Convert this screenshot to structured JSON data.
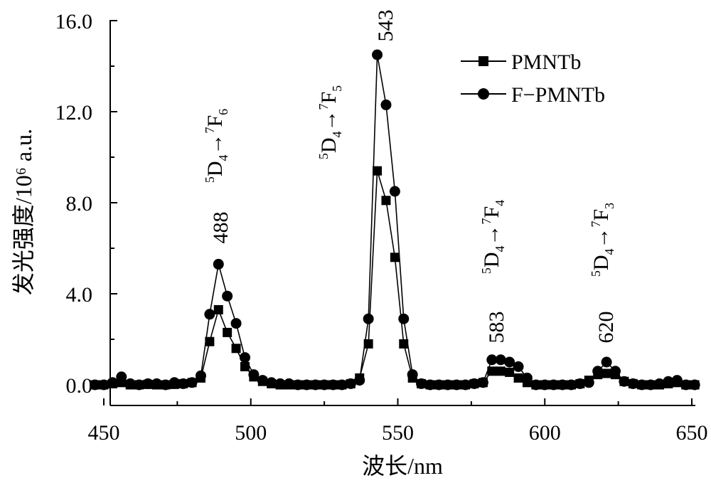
{
  "chart_data": {
    "type": "line",
    "xlabel": "波长/nm",
    "ylabel": "发光强度/10⁶ a.u.",
    "xlim": [
      450,
      650
    ],
    "ylim": [
      0,
      16
    ],
    "x_ticks": [
      450,
      500,
      550,
      600,
      650
    ],
    "x_tick_labels": [
      "450",
      "500",
      "550",
      "600",
      "650"
    ],
    "y_ticks": [
      0,
      4,
      8,
      12,
      16
    ],
    "y_tick_labels": [
      "0.0",
      "4.0",
      "8.0",
      "12.0",
      "16.0"
    ],
    "grid": false,
    "legend_position": "top-right",
    "series": [
      {
        "name": "PMNTb",
        "marker": "square",
        "x": [
          447,
          450,
          453,
          456,
          459,
          462,
          465,
          468,
          471,
          474,
          477,
          480,
          483,
          486,
          489,
          492,
          495,
          498,
          501,
          504,
          507,
          510,
          513,
          516,
          519,
          522,
          525,
          528,
          531,
          534,
          537,
          540,
          543,
          546,
          549,
          552,
          555,
          558,
          561,
          564,
          567,
          570,
          573,
          576,
          579,
          582,
          585,
          588,
          591,
          594,
          597,
          600,
          603,
          606,
          609,
          612,
          615,
          618,
          621,
          624,
          627,
          630,
          633,
          636,
          639,
          642,
          645,
          648,
          651
        ],
        "values": [
          0.0,
          0.0,
          0.05,
          0.1,
          0.0,
          0.0,
          0.02,
          0.0,
          0.0,
          0.02,
          0.05,
          0.1,
          0.3,
          1.9,
          3.3,
          2.3,
          1.6,
          0.8,
          0.35,
          0.15,
          0.05,
          0.0,
          0.0,
          0.0,
          0.0,
          0.0,
          0.0,
          0.0,
          0.0,
          0.05,
          0.3,
          1.8,
          9.4,
          8.1,
          5.6,
          1.8,
          0.3,
          0.05,
          0.0,
          0.0,
          0.0,
          0.0,
          0.0,
          0.05,
          0.1,
          0.6,
          0.6,
          0.55,
          0.3,
          0.1,
          0.0,
          0.0,
          0.0,
          0.0,
          0.0,
          0.05,
          0.2,
          0.45,
          0.5,
          0.45,
          0.15,
          0.05,
          0.0,
          0.0,
          0.0,
          0.05,
          0.1,
          0.0,
          0.0
        ]
      },
      {
        "name": "F−PMNTb",
        "marker": "circle",
        "x": [
          447,
          450,
          453,
          456,
          459,
          462,
          465,
          468,
          471,
          474,
          477,
          480,
          483,
          486,
          489,
          492,
          495,
          498,
          501,
          504,
          507,
          510,
          513,
          516,
          519,
          522,
          525,
          528,
          531,
          534,
          537,
          540,
          543,
          546,
          549,
          552,
          555,
          558,
          561,
          564,
          567,
          570,
          573,
          576,
          579,
          582,
          585,
          588,
          591,
          594,
          597,
          600,
          603,
          606,
          609,
          612,
          615,
          618,
          621,
          624,
          627,
          630,
          633,
          636,
          639,
          642,
          645,
          648,
          651
        ],
        "values": [
          0.0,
          0.0,
          0.1,
          0.35,
          0.05,
          0.0,
          0.05,
          0.05,
          0.0,
          0.1,
          0.05,
          0.1,
          0.4,
          3.1,
          5.3,
          3.9,
          2.7,
          1.2,
          0.45,
          0.2,
          0.1,
          0.05,
          0.05,
          0.0,
          0.0,
          0.0,
          0.0,
          0.0,
          0.0,
          0.05,
          0.2,
          2.9,
          14.5,
          12.3,
          8.5,
          2.9,
          0.45,
          0.05,
          0.0,
          0.0,
          0.0,
          0.0,
          0.0,
          0.05,
          0.1,
          1.1,
          1.1,
          1.0,
          0.8,
          0.3,
          0.0,
          0.0,
          0.0,
          0.0,
          0.0,
          0.05,
          0.1,
          0.6,
          1.0,
          0.6,
          0.15,
          0.05,
          0.0,
          0.0,
          0.05,
          0.15,
          0.2,
          0.0,
          0.0
        ]
      }
    ],
    "annotations": [
      {
        "peak": "488",
        "x": 488,
        "y": 5.3,
        "transition": {
          "upper": "D",
          "upper_sup": "5",
          "upper_sub": "4",
          "arrow": "→",
          "lower": "F",
          "lower_sup": "7",
          "lower_sub": "6"
        }
      },
      {
        "peak": "543",
        "x": 543,
        "y": 14.5,
        "transition": {
          "upper": "D",
          "upper_sup": "5",
          "upper_sub": "4",
          "arrow": "→",
          "lower": "F",
          "lower_sup": "7",
          "lower_sub": "5"
        }
      },
      {
        "peak": "583",
        "x": 583,
        "y": 1.1,
        "transition": {
          "upper": "D",
          "upper_sup": "5",
          "upper_sub": "4",
          "arrow": "→",
          "lower": "F",
          "lower_sup": "7",
          "lower_sub": "4"
        }
      },
      {
        "peak": "620",
        "x": 620,
        "y": 1.0,
        "transition": {
          "upper": "D",
          "upper_sup": "5",
          "upper_sub": "4",
          "arrow": "→",
          "lower": "F",
          "lower_sup": "7",
          "lower_sub": "3"
        }
      }
    ]
  }
}
